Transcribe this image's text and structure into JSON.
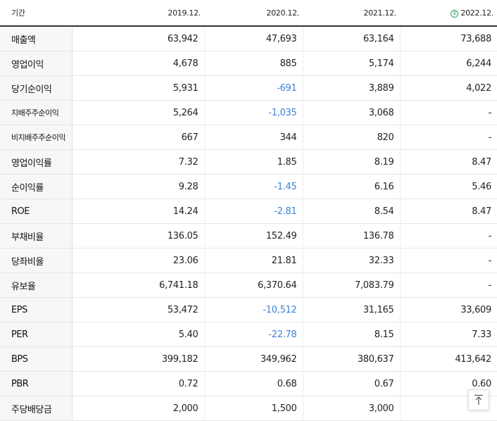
{
  "header": {
    "label": "기간",
    "columns": [
      "2019.12.",
      "2020.12.",
      "2021.12.",
      "2022.12."
    ],
    "estimate_icon_text": "E"
  },
  "rows": [
    {
      "label": "매출액",
      "values": [
        "63,942",
        "47,693",
        "63,164",
        "73,688"
      ]
    },
    {
      "label": "영업이익",
      "values": [
        "4,678",
        "885",
        "5,174",
        "6,244"
      ]
    },
    {
      "label": "당기순이익",
      "values": [
        "5,931",
        "-691",
        "3,889",
        "4,022"
      ]
    },
    {
      "label": "지배주주순이익",
      "values": [
        "5,264",
        "-1,035",
        "3,068",
        "-"
      ]
    },
    {
      "label": "비지배주주순이익",
      "values": [
        "667",
        "344",
        "820",
        "-"
      ]
    },
    {
      "label": "영업이익률",
      "values": [
        "7.32",
        "1.85",
        "8.19",
        "8.47"
      ]
    },
    {
      "label": "순이익률",
      "values": [
        "9.28",
        "-1.45",
        "6.16",
        "5.46"
      ]
    },
    {
      "label": "ROE",
      "values": [
        "14.24",
        "-2.81",
        "8.54",
        "8.47"
      ]
    },
    {
      "label": "부채비율",
      "values": [
        "136.05",
        "152.49",
        "136.78",
        "-"
      ]
    },
    {
      "label": "당좌비율",
      "values": [
        "23.06",
        "21.81",
        "32.33",
        "-"
      ]
    },
    {
      "label": "유보율",
      "values": [
        "6,741.18",
        "6,370.64",
        "7,083.79",
        "-"
      ]
    },
    {
      "label": "EPS",
      "values": [
        "53,472",
        "-10,512",
        "31,165",
        "33,609"
      ]
    },
    {
      "label": "PER",
      "values": [
        "5.40",
        "-22.78",
        "8.15",
        "7.33"
      ]
    },
    {
      "label": "BPS",
      "values": [
        "399,182",
        "349,962",
        "380,637",
        "413,642"
      ]
    },
    {
      "label": "PBR",
      "values": [
        "0.72",
        "0.68",
        "0.67",
        "0.60"
      ]
    },
    {
      "label": "주당배당금",
      "values": [
        "2,000",
        "1,500",
        "3,000",
        ""
      ]
    }
  ],
  "colors": {
    "negative": "#3b82d6",
    "estimate": "#1ca35a"
  },
  "scroll_top_button": {
    "icon": "arrow-up-to-top-icon"
  }
}
